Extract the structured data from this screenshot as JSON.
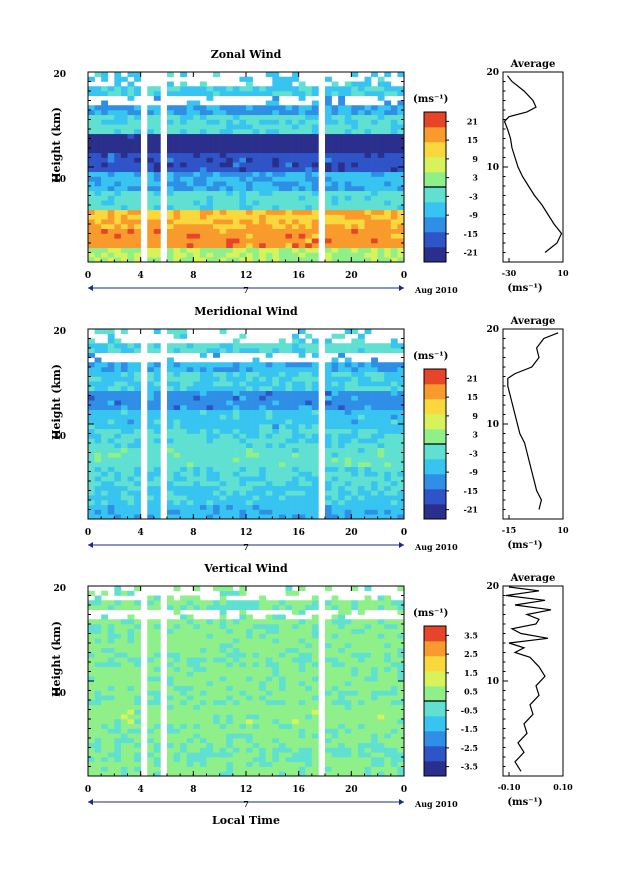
{
  "figure": {
    "time_axis_label": "Local Time",
    "date_label": "Aug 2010",
    "day_label": "7"
  },
  "chart_data": [
    {
      "type": "heatmap",
      "id": "zonal",
      "title": "Zonal Wind",
      "ylabel": "Height (km)",
      "xlim": [
        0,
        24
      ],
      "ylim": [
        0,
        20
      ],
      "x_ticks": [
        "0",
        "4",
        "8",
        "12",
        "16",
        "20",
        "0"
      ],
      "y_ticks": [
        "20",
        "10"
      ],
      "units": "(ms⁻¹)",
      "colorbar_ticks": [
        "21",
        "15",
        "9",
        "3",
        "-3",
        "-9",
        "-15",
        "-21"
      ],
      "colorbar_range": [
        -24,
        24
      ],
      "profile_title": "Average",
      "profile_xticks": [
        "-30",
        "10"
      ],
      "profile_xlim": [
        -30,
        10
      ],
      "profile_units": "(ms⁻¹)",
      "profile": [
        [
          1.0,
          -2
        ],
        [
          2.0,
          6
        ],
        [
          3.0,
          9
        ],
        [
          4.0,
          4
        ],
        [
          5.0,
          0
        ],
        [
          6.0,
          -4
        ],
        [
          7.0,
          -9
        ],
        [
          8.0,
          -13
        ],
        [
          9.0,
          -17
        ],
        [
          10.0,
          -20
        ],
        [
          11.0,
          -22
        ],
        [
          12.0,
          -24
        ],
        [
          13.0,
          -25
        ],
        [
          14.0,
          -27
        ],
        [
          14.8,
          -29
        ],
        [
          15.3,
          -26
        ],
        [
          15.8,
          -14
        ],
        [
          16.3,
          -8
        ],
        [
          17.0,
          -10
        ],
        [
          18.0,
          -16
        ],
        [
          19.0,
          -24
        ],
        [
          19.6,
          -27
        ]
      ],
      "bands": [
        [
          0.5,
          4
        ],
        [
          2.5,
          17
        ],
        [
          4.5,
          14
        ],
        [
          6.5,
          -3
        ],
        [
          8.5,
          -9
        ],
        [
          10.5,
          -17
        ],
        [
          12.5,
          -22
        ],
        [
          14.5,
          -4
        ],
        [
          16.5,
          -10
        ],
        [
          18.5,
          -6
        ]
      ]
    },
    {
      "type": "heatmap",
      "id": "meridional",
      "title": "Meridional Wind",
      "ylabel": "Height (km)",
      "xlim": [
        0,
        24
      ],
      "ylim": [
        0,
        20
      ],
      "x_ticks": [
        "0",
        "4",
        "8",
        "12",
        "16",
        "20",
        "0"
      ],
      "y_ticks": [
        "20",
        "10"
      ],
      "units": "(ms⁻¹)",
      "colorbar_ticks": [
        "21",
        "15",
        "9",
        "3",
        "-3",
        "-9",
        "-15",
        "-21"
      ],
      "colorbar_range": [
        -24,
        24
      ],
      "profile_title": "Average",
      "profile_xticks": [
        "-15",
        "10"
      ],
      "profile_xlim": [
        -15,
        10
      ],
      "profile_units": "(ms⁻¹)",
      "profile": [
        [
          1.0,
          0
        ],
        [
          2.0,
          1
        ],
        [
          3.0,
          -1
        ],
        [
          4.0,
          -2
        ],
        [
          5.0,
          -3
        ],
        [
          6.0,
          -4
        ],
        [
          7.0,
          -5
        ],
        [
          8.0,
          -6
        ],
        [
          9.0,
          -8
        ],
        [
          10.0,
          -9
        ],
        [
          11.0,
          -10
        ],
        [
          12.0,
          -11
        ],
        [
          13.0,
          -12
        ],
        [
          14.0,
          -13
        ],
        [
          14.8,
          -13
        ],
        [
          15.3,
          -10
        ],
        [
          16.0,
          -3
        ],
        [
          17.0,
          0
        ],
        [
          18.0,
          -1
        ],
        [
          19.0,
          2
        ],
        [
          19.6,
          8
        ]
      ],
      "bands": [
        [
          0.5,
          -8
        ],
        [
          2.5,
          -6
        ],
        [
          4.5,
          -4
        ],
        [
          6.5,
          -2
        ],
        [
          8.5,
          -4
        ],
        [
          10.5,
          -7
        ],
        [
          12.5,
          -12
        ],
        [
          14.5,
          -5
        ],
        [
          16.5,
          -9
        ],
        [
          18.5,
          -4
        ]
      ]
    },
    {
      "type": "heatmap",
      "id": "vertical",
      "title": "Vertical Wind",
      "ylabel": "Height (km)",
      "xlim": [
        0,
        24
      ],
      "ylim": [
        0,
        20
      ],
      "x_ticks": [
        "0",
        "4",
        "8",
        "12",
        "16",
        "20",
        "0"
      ],
      "y_ticks": [
        "20",
        "10"
      ],
      "units": "(ms⁻¹)",
      "colorbar_ticks": [
        "3.5",
        "2.5",
        "1.5",
        "0.5",
        "-0.5",
        "-1.5",
        "-2.5",
        "-3.5"
      ],
      "colorbar_range": [
        -4,
        4
      ],
      "profile_title": "Average",
      "profile_xticks": [
        "-0.10",
        "0.10"
      ],
      "profile_xlim": [
        -0.1,
        0.1
      ],
      "profile_units": "(ms⁻¹)",
      "profile": [
        [
          0.5,
          -0.04
        ],
        [
          1.5,
          -0.06
        ],
        [
          2.5,
          -0.03
        ],
        [
          3.5,
          -0.05
        ],
        [
          4.5,
          -0.02
        ],
        [
          5.5,
          -0.03
        ],
        [
          6.5,
          0.0
        ],
        [
          7.5,
          -0.01
        ],
        [
          8.5,
          0.02
        ],
        [
          9.5,
          0.01
        ],
        [
          10.5,
          0.04
        ],
        [
          11.5,
          0.02
        ],
        [
          12.5,
          -0.01
        ],
        [
          13.0,
          -0.06
        ],
        [
          13.5,
          -0.03
        ],
        [
          14.0,
          -0.08
        ],
        [
          14.5,
          0.05
        ],
        [
          15.0,
          -0.04
        ],
        [
          15.5,
          -0.07
        ],
        [
          16.0,
          0.01
        ],
        [
          16.5,
          0.02
        ],
        [
          17.0,
          -0.02
        ],
        [
          17.5,
          0.06
        ],
        [
          18.0,
          -0.06
        ],
        [
          18.5,
          0.04
        ],
        [
          19.0,
          -0.09
        ],
        [
          19.5,
          0.02
        ],
        [
          19.9,
          -0.08
        ]
      ],
      "bands": [
        [
          0.5,
          0.3
        ],
        [
          2.5,
          0.0
        ],
        [
          4.5,
          0.2
        ],
        [
          6.5,
          0.4
        ],
        [
          8.5,
          0.2
        ],
        [
          10.5,
          0.3
        ],
        [
          12.5,
          0.1
        ],
        [
          14.5,
          0.3
        ],
        [
          16.5,
          0.2
        ],
        [
          18.5,
          0.1
        ]
      ]
    }
  ]
}
